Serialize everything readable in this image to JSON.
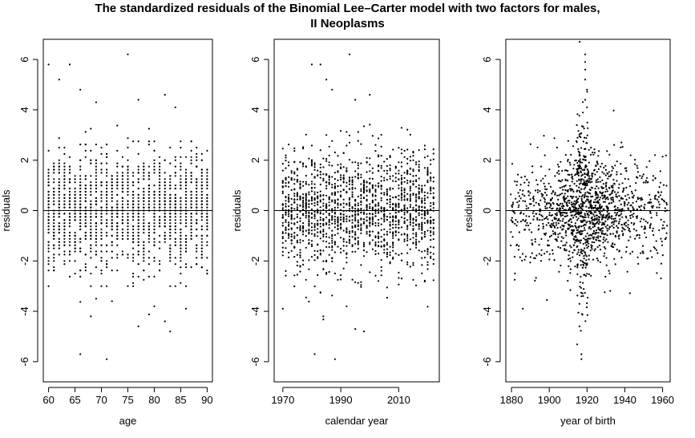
{
  "title_line1": "The standardized residuals of the Binomial Lee–Carter model with two factors for males,",
  "title_line2": "II Neoplasms",
  "chart_data": [
    {
      "type": "scatter",
      "xlabel": "age",
      "ylabel": "residuals",
      "xlim": [
        59,
        91
      ],
      "ylim": [
        -6.8,
        6.8
      ],
      "x_ticks": [
        60,
        65,
        70,
        75,
        80,
        85,
        90
      ],
      "y_ticks": [
        6,
        4,
        2,
        0,
        -2,
        -4,
        -6
      ],
      "reference_line_y": 0,
      "x_grid": [
        60,
        61,
        62,
        63,
        64,
        65,
        66,
        67,
        68,
        69,
        70,
        71,
        72,
        73,
        74,
        75,
        76,
        77,
        78,
        79,
        80,
        81,
        82,
        83,
        84,
        85,
        86,
        87,
        88,
        89,
        90
      ],
      "points_per_x": 55,
      "outliers": [
        {
          "x": 60,
          "y": 5.8
        },
        {
          "x": 62,
          "y": 5.2
        },
        {
          "x": 64,
          "y": 5.8
        },
        {
          "x": 66,
          "y": 4.8
        },
        {
          "x": 69,
          "y": 4.3
        },
        {
          "x": 75,
          "y": 6.2
        },
        {
          "x": 77,
          "y": 4.4
        },
        {
          "x": 82,
          "y": 4.6
        },
        {
          "x": 84,
          "y": 4.1
        },
        {
          "x": 66,
          "y": -5.7
        },
        {
          "x": 71,
          "y": -5.9
        },
        {
          "x": 77,
          "y": -4.6
        },
        {
          "x": 80,
          "y": -3.8
        },
        {
          "x": 83,
          "y": -4.8
        },
        {
          "x": 82,
          "y": -4.4
        },
        {
          "x": 68,
          "y": -4.2
        },
        {
          "x": 72,
          "y": -3.6
        },
        {
          "x": 86,
          "y": -3.9
        }
      ]
    },
    {
      "type": "scatter",
      "xlabel": "calendar year",
      "ylabel": "residuals",
      "xlim": [
        1967,
        2024
      ],
      "ylim": [
        -6.8,
        6.8
      ],
      "x_ticks": [
        1970,
        1990,
        2010
      ],
      "y_ticks": [
        6,
        4,
        2,
        0,
        -2,
        -4,
        -6
      ],
      "reference_line_y": 0,
      "x_grid_range": [
        1970,
        2022
      ],
      "points_per_x": 31,
      "outliers": [
        {
          "x": 1980,
          "y": 5.8
        },
        {
          "x": 1983,
          "y": 5.8
        },
        {
          "x": 1993,
          "y": 6.2
        },
        {
          "x": 1985,
          "y": 5.2
        },
        {
          "x": 2000,
          "y": 4.6
        },
        {
          "x": 1987,
          "y": 4.8
        },
        {
          "x": 1995,
          "y": 4.4
        },
        {
          "x": 1981,
          "y": -5.7
        },
        {
          "x": 1988,
          "y": -5.9
        },
        {
          "x": 1995,
          "y": -4.7
        },
        {
          "x": 1998,
          "y": -4.8
        },
        {
          "x": 1970,
          "y": -3.9
        },
        {
          "x": 1984,
          "y": -4.2
        },
        {
          "x": 1992,
          "y": -3.8
        }
      ]
    },
    {
      "type": "scatter",
      "xlabel": "year of birth",
      "ylabel": "residuals",
      "xlim": [
        1877,
        1964
      ],
      "ylim": [
        -6.8,
        6.8
      ],
      "x_ticks": [
        1880,
        1900,
        1920,
        1940,
        1960
      ],
      "y_ticks": [
        6,
        4,
        2,
        0,
        -2,
        -4,
        -6
      ],
      "reference_line_y": 0,
      "x_grid_range": [
        1880,
        1962
      ],
      "outliers": [
        {
          "x": 1919,
          "y": 6.2
        },
        {
          "x": 1919,
          "y": 5.9
        },
        {
          "x": 1919,
          "y": 5.6
        },
        {
          "x": 1919,
          "y": 5.2
        },
        {
          "x": 1920,
          "y": 4.8
        },
        {
          "x": 1917,
          "y": -5.7
        },
        {
          "x": 1917,
          "y": -5.9
        },
        {
          "x": 1916,
          "y": -4.6
        },
        {
          "x": 1886,
          "y": -3.9
        },
        {
          "x": 1916,
          "y": -3.7
        },
        {
          "x": 1917,
          "y": -3.4
        },
        {
          "x": 1919,
          "y": 4.4
        },
        {
          "x": 1920,
          "y": 4.1
        }
      ]
    }
  ]
}
